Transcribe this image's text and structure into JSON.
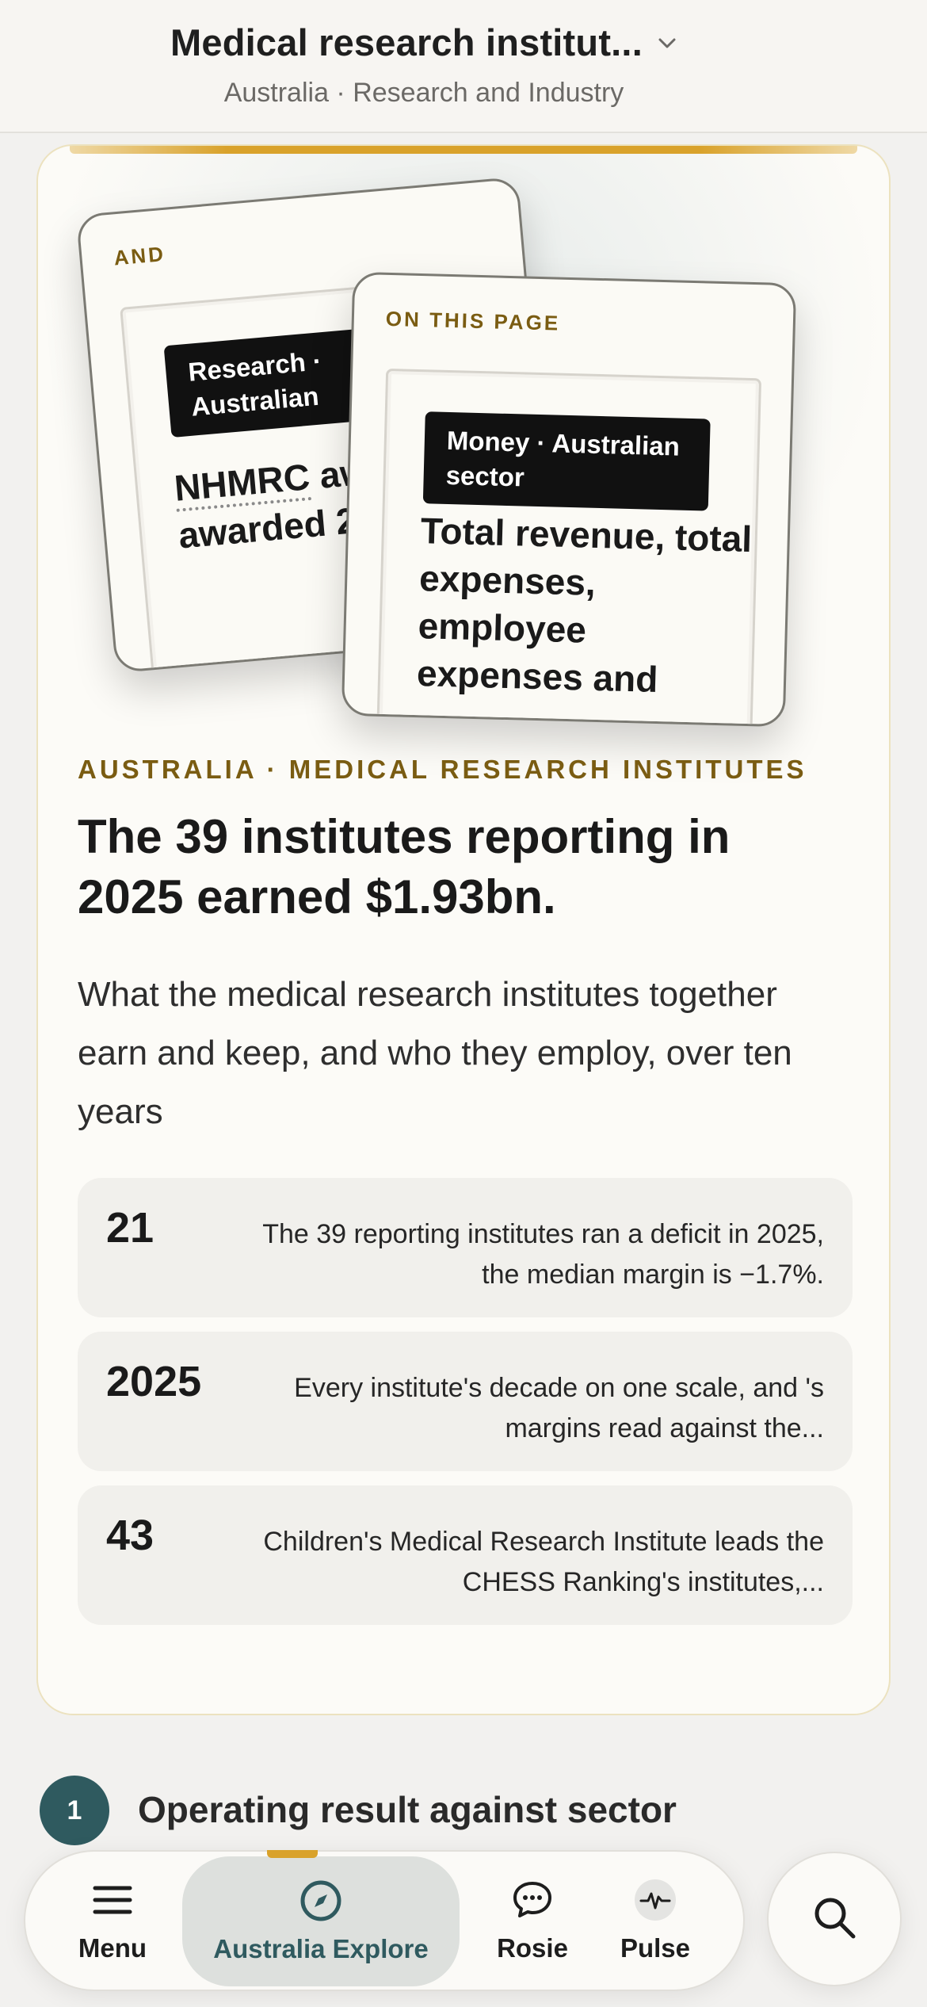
{
  "header": {
    "title": "Medical research institut...",
    "subtitle": "Australia · Research and Industry"
  },
  "preview_cards": [
    {
      "kicker": "AND",
      "tag": "Research · Australian",
      "headline_underlined": "NHMRC",
      "headline_rest": "awarded, awarded 2013 to 2"
    },
    {
      "kicker": "ON THIS PAGE",
      "tag": "Money · Australian sector",
      "headline": "Total revenue, total expenses, employee expenses and"
    }
  ],
  "eyebrow": "AUSTRALIA · MEDICAL RESEARCH INSTITUTES",
  "headline": "The 39 institutes reporting in 2025 earned $1.93bn.",
  "lede": "What the medical research institutes together earn and keep, and who they employ, over ten years",
  "stats": [
    {
      "number": "21",
      "text": "The 39 reporting institutes ran a deficit in 2025, the median margin is −1.7%."
    },
    {
      "number": "2025",
      "text": "Every institute's decade on one scale, and 's margins read against the..."
    },
    {
      "number": "43",
      "text": "Children's Medical Research Institute leads the CHESS Ranking's institutes,..."
    }
  ],
  "section": {
    "step": "1",
    "title": "Operating result against sector"
  },
  "nav": {
    "menu": "Menu",
    "explore": "Australia Explore",
    "rosie": "Rosie",
    "pulse": "Pulse"
  },
  "colors": {
    "accent_gold": "#d9a22b",
    "accent_teal": "#2f5a5f",
    "eyebrow_gold": "#7a5c12"
  }
}
